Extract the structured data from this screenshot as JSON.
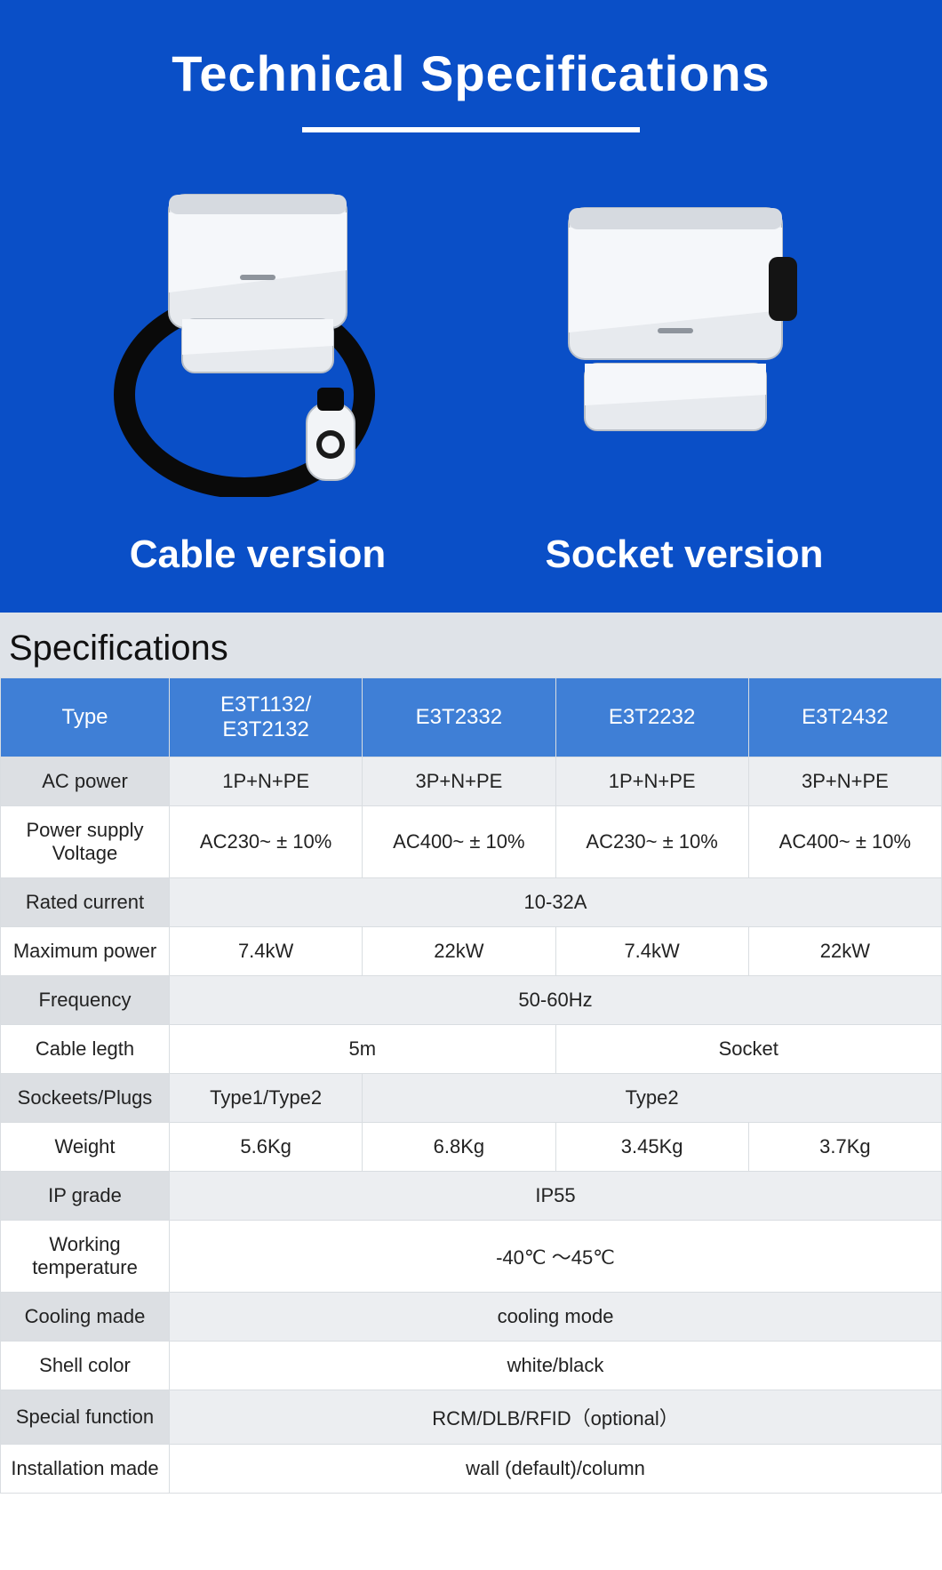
{
  "hero": {
    "title": "Technical Specifications",
    "title_color": "#ffffff",
    "bg_color": "#0a4fc7",
    "products": [
      {
        "label": "Cable version",
        "kind": "cable"
      },
      {
        "label": "Socket version",
        "kind": "socket"
      }
    ]
  },
  "specs": {
    "heading": "Specifications",
    "header_row": {
      "label": "Type",
      "cols": [
        "E3T1132/ E3T2132",
        "E3T2332",
        "E3T2232",
        "E3T2432"
      ]
    },
    "rows": [
      {
        "label": "AC power",
        "cells": [
          "1P+N+PE",
          "3P+N+PE",
          "1P+N+PE",
          "3P+N+PE"
        ],
        "span": [
          1,
          1,
          1,
          1
        ],
        "shade": "odd"
      },
      {
        "label": "Power supply Voltage",
        "cells": [
          "AC230~ ± 10%",
          "AC400~ ± 10%",
          "AC230~ ± 10%",
          "AC400~ ± 10%"
        ],
        "span": [
          1,
          1,
          1,
          1
        ],
        "shade": "even"
      },
      {
        "label": "Rated current",
        "cells": [
          "10-32A"
        ],
        "span": [
          4
        ],
        "shade": "odd"
      },
      {
        "label": "Maximum power",
        "cells": [
          "7.4kW",
          "22kW",
          "7.4kW",
          "22kW"
        ],
        "span": [
          1,
          1,
          1,
          1
        ],
        "shade": "even"
      },
      {
        "label": "Frequency",
        "cells": [
          "50-60Hz"
        ],
        "span": [
          4
        ],
        "shade": "odd"
      },
      {
        "label": "Cable legth",
        "cells": [
          "5m",
          "Socket"
        ],
        "span": [
          2,
          2
        ],
        "shade": "even"
      },
      {
        "label": "Sockeets/Plugs",
        "cells": [
          "Type1/Type2",
          "Type2"
        ],
        "span": [
          1,
          3
        ],
        "shade": "odd"
      },
      {
        "label": "Weight",
        "cells": [
          "5.6Kg",
          "6.8Kg",
          "3.45Kg",
          "3.7Kg"
        ],
        "span": [
          1,
          1,
          1,
          1
        ],
        "shade": "even"
      },
      {
        "label": "IP grade",
        "cells": [
          "IP55"
        ],
        "span": [
          4
        ],
        "shade": "odd"
      },
      {
        "label": "Working temperature",
        "cells": [
          "-40℃ ～45℃"
        ],
        "span": [
          4
        ],
        "shade": "even"
      },
      {
        "label": "Cooling made",
        "cells": [
          "cooling mode"
        ],
        "span": [
          4
        ],
        "shade": "odd"
      },
      {
        "label": "Shell color",
        "cells": [
          "white/black"
        ],
        "span": [
          4
        ],
        "shade": "even"
      },
      {
        "label": "Special function",
        "cells": [
          "RCM/DLB/RFID（optional）"
        ],
        "span": [
          4
        ],
        "shade": "odd"
      },
      {
        "label": "Installation made",
        "cells": [
          "wall (default)/column"
        ],
        "span": [
          4
        ],
        "shade": "even"
      }
    ],
    "colors": {
      "header_bg": "#3f7fd6",
      "header_text": "#ffffff",
      "border": "#d9dde1",
      "odd_label_bg": "#dcdfe3",
      "odd_data_bg": "#eceef1",
      "even_bg": "#ffffff",
      "section_bg": "#dfe3e8"
    }
  }
}
